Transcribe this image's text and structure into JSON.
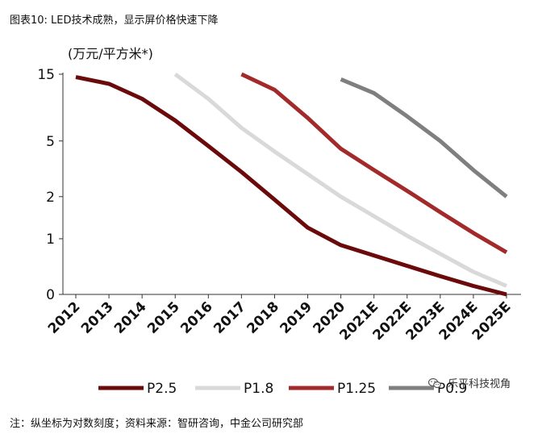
{
  "figure_title": "图表10: LED技术成熟，显示屏价格快速下降",
  "note": "注：纵坐标为对数刻度；资料来源：智研咨询，中金公司研究部",
  "watermark": "乐平科技视角",
  "chart_data": {
    "type": "line",
    "title": "",
    "ylabel": "(万元/平方米*)",
    "xlabel": "",
    "y_scale": "log",
    "y_ticks": [
      {
        "label": "15",
        "value": 15
      },
      {
        "label": "5",
        "value": 5
      },
      {
        "label": "2",
        "value": 2
      },
      {
        "label": "1",
        "value": 1
      },
      {
        "label": "0",
        "value": 0.4
      }
    ],
    "categories": [
      "2012",
      "2013",
      "2014",
      "2015",
      "2016",
      "2017",
      "2018",
      "2019",
      "2020",
      "2021E",
      "2022E",
      "2023E",
      "2024E",
      "2025E"
    ],
    "legend_position": "bottom",
    "grid": false,
    "series": [
      {
        "name": "P2.5",
        "color": "#6b0a0a",
        "values": [
          14.3,
          12.8,
          10.0,
          7.0,
          4.6,
          3.0,
          1.9,
          1.2,
          0.9,
          0.76,
          0.64,
          0.54,
          0.46,
          0.4
        ]
      },
      {
        "name": "P1.8",
        "color": "#d9d9d9",
        "values": [
          null,
          null,
          null,
          15.0,
          10.0,
          6.2,
          4.2,
          2.9,
          2.0,
          1.45,
          1.05,
          0.78,
          0.58,
          0.46
        ]
      },
      {
        "name": "P1.25",
        "color": "#a32a2a",
        "values": [
          null,
          null,
          null,
          null,
          null,
          15.0,
          11.6,
          7.3,
          4.4,
          3.1,
          2.2,
          1.55,
          1.1,
          0.8
        ]
      },
      {
        "name": "P0.9",
        "color": "#7f7f7f",
        "values": [
          null,
          null,
          null,
          null,
          null,
          null,
          null,
          null,
          13.8,
          11.0,
          7.5,
          5.0,
          3.1,
          2.0
        ]
      }
    ]
  },
  "legend": [
    {
      "label": "P2.5",
      "color": "#6b0a0a"
    },
    {
      "label": "P1.8",
      "color": "#d9d9d9"
    },
    {
      "label": "P1.25",
      "color": "#a32a2a"
    },
    {
      "label": "P0.9",
      "color": "#7f7f7f"
    }
  ]
}
